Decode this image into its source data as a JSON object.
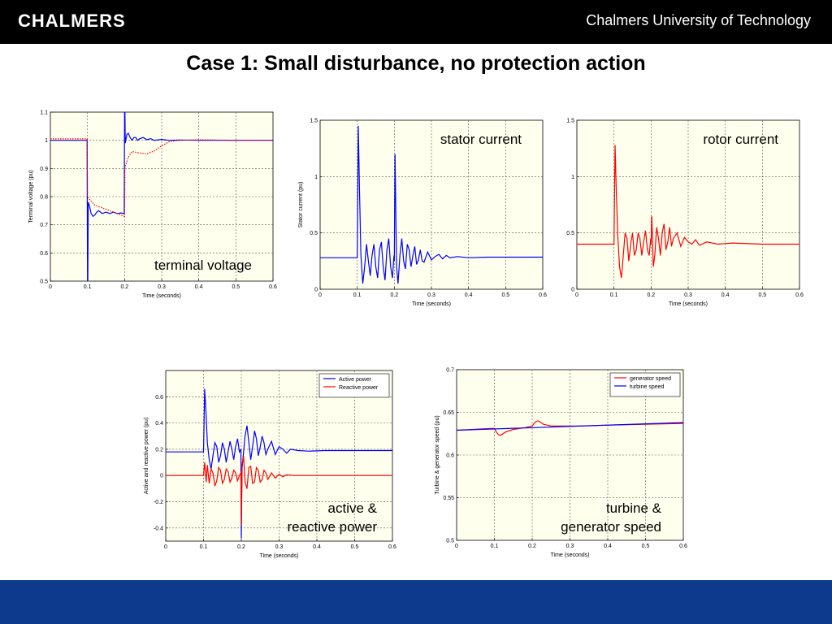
{
  "header": {
    "logo_text": "CHALMERS",
    "university": "Chalmers University of Technology"
  },
  "slide": {
    "title": "Case 1: Small disturbance, no protection action"
  },
  "colors": {
    "header_bg": "#000000",
    "footer_bg": "#0d3a8c",
    "plot_bg": "#ffffee",
    "blue_series": "#0000ff",
    "red_series": "#ff0000"
  },
  "chart_data": [
    {
      "type": "line",
      "annotation": [
        "terminal voltage"
      ],
      "xlabel": "Time (seconds)",
      "ylabel": "Terminal voltage (pu)",
      "xlim": [
        0,
        0.6
      ],
      "ylim": [
        0.5,
        1.1
      ],
      "xticks": [
        0,
        0.1,
        0.2,
        0.3,
        0.4,
        0.5,
        0.6
      ],
      "xtick_labels": [
        "0",
        "0.1",
        "0.2",
        "0.3",
        "0.4",
        "0.5",
        "0.6"
      ],
      "yticks": [
        0.5,
        0.6,
        0.7,
        0.8,
        0.9,
        1,
        1.1
      ],
      "ytick_labels": [
        "0.5",
        "0.6",
        "0.7",
        "0.8",
        "0.9",
        "1",
        "1.1"
      ],
      "grid": true,
      "series": [
        {
          "color": "#0000ff",
          "style": "solid",
          "x": [
            0,
            0.099,
            0.1,
            0.101,
            0.102,
            0.105,
            0.11,
            0.115,
            0.12,
            0.125,
            0.13,
            0.14,
            0.15,
            0.16,
            0.17,
            0.18,
            0.19,
            0.199,
            0.2,
            0.201,
            0.202,
            0.206,
            0.21,
            0.215,
            0.22,
            0.225,
            0.23,
            0.235,
            0.24,
            0.25,
            0.26,
            0.27,
            0.28,
            0.3,
            0.32,
            0.35,
            0.4,
            0.5,
            0.6
          ],
          "y": [
            1.0,
            1.0,
            0.5,
            0.5,
            0.78,
            0.77,
            0.74,
            0.73,
            0.735,
            0.745,
            0.75,
            0.74,
            0.745,
            0.74,
            0.745,
            0.74,
            0.742,
            0.74,
            1.1,
            1.1,
            0.99,
            1.02,
            1.025,
            1.01,
            1.0,
            1.01,
            1.01,
            1.0,
            1.005,
            1.01,
            1.002,
            1.006,
            1.0,
            1.003,
            1.0,
            1.001,
            1.0,
            1.0,
            1.0
          ]
        },
        {
          "color": "#ff0000",
          "style": "dotted",
          "x": [
            0,
            0.099,
            0.1,
            0.105,
            0.12,
            0.14,
            0.16,
            0.18,
            0.2,
            0.201,
            0.21,
            0.22,
            0.24,
            0.26,
            0.28,
            0.3,
            0.32,
            0.35,
            0.4,
            0.5,
            0.6
          ],
          "y": [
            1.005,
            1.005,
            0.8,
            0.79,
            0.77,
            0.76,
            0.75,
            0.74,
            0.73,
            0.905,
            0.94,
            0.96,
            0.955,
            0.952,
            0.962,
            0.98,
            0.995,
            1.0,
            1.002,
            1.0,
            1.0
          ]
        }
      ]
    },
    {
      "type": "line",
      "annotation": [
        "stator current"
      ],
      "xlabel": "Time (seconds)",
      "ylabel": "Stator current (pu)",
      "xlim": [
        0,
        0.6
      ],
      "ylim": [
        0,
        1.5
      ],
      "xticks": [
        0,
        0.1,
        0.2,
        0.3,
        0.4,
        0.5,
        0.6
      ],
      "xtick_labels": [
        "0",
        "0.1",
        "0.2",
        "0.3",
        "0.4",
        "0.5",
        "0.6"
      ],
      "yticks": [
        0,
        0.5,
        1,
        1.5
      ],
      "ytick_labels": [
        "0",
        "0.5",
        "1",
        "1.5"
      ],
      "grid": true,
      "series": [
        {
          "color": "#0000ff",
          "style": "solid",
          "x": [
            0,
            0.099,
            0.1,
            0.103,
            0.106,
            0.11,
            0.115,
            0.12,
            0.125,
            0.13,
            0.135,
            0.14,
            0.145,
            0.15,
            0.155,
            0.16,
            0.165,
            0.17,
            0.175,
            0.18,
            0.185,
            0.19,
            0.195,
            0.199,
            0.2,
            0.202,
            0.206,
            0.21,
            0.215,
            0.22,
            0.225,
            0.23,
            0.235,
            0.24,
            0.245,
            0.25,
            0.255,
            0.26,
            0.265,
            0.27,
            0.275,
            0.28,
            0.29,
            0.3,
            0.31,
            0.32,
            0.33,
            0.34,
            0.35,
            0.37,
            0.4,
            0.45,
            0.5,
            0.6
          ],
          "y": [
            0.28,
            0.28,
            0.28,
            1.45,
            0.9,
            0.3,
            0.05,
            0.2,
            0.4,
            0.25,
            0.12,
            0.3,
            0.4,
            0.2,
            0.1,
            0.35,
            0.42,
            0.2,
            0.08,
            0.35,
            0.45,
            0.2,
            0.1,
            0.3,
            0.25,
            1.2,
            0.2,
            0.05,
            0.3,
            0.45,
            0.25,
            0.18,
            0.4,
            0.35,
            0.2,
            0.3,
            0.38,
            0.22,
            0.26,
            0.35,
            0.25,
            0.24,
            0.33,
            0.26,
            0.29,
            0.31,
            0.27,
            0.3,
            0.28,
            0.29,
            0.28,
            0.285,
            0.285,
            0.285
          ]
        }
      ]
    },
    {
      "type": "line",
      "annotation": [
        "rotor current"
      ],
      "xlabel": "Time (seconds)",
      "ylabel": "",
      "xlim": [
        0,
        0.6
      ],
      "ylim": [
        0,
        1.5
      ],
      "xticks": [
        0,
        0.1,
        0.2,
        0.3,
        0.4,
        0.5,
        0.6
      ],
      "xtick_labels": [
        "0",
        "0.1",
        "0.2",
        "0.3",
        "0.4",
        "0.5",
        "0.6"
      ],
      "yticks": [
        0,
        0.5,
        1,
        1.5
      ],
      "ytick_labels": [
        "0",
        "0.5",
        "1",
        "1.5"
      ],
      "grid": true,
      "series": [
        {
          "color": "#ff0000",
          "style": "solid",
          "x": [
            0,
            0.099,
            0.1,
            0.103,
            0.106,
            0.11,
            0.115,
            0.12,
            0.125,
            0.13,
            0.135,
            0.14,
            0.145,
            0.15,
            0.155,
            0.16,
            0.165,
            0.17,
            0.175,
            0.18,
            0.185,
            0.19,
            0.195,
            0.199,
            0.2,
            0.202,
            0.206,
            0.21,
            0.215,
            0.22,
            0.225,
            0.23,
            0.235,
            0.24,
            0.245,
            0.25,
            0.255,
            0.26,
            0.27,
            0.28,
            0.29,
            0.3,
            0.31,
            0.32,
            0.33,
            0.35,
            0.38,
            0.42,
            0.5,
            0.6
          ],
          "y": [
            0.4,
            0.4,
            0.4,
            1.28,
            0.9,
            0.5,
            0.2,
            0.1,
            0.3,
            0.5,
            0.45,
            0.25,
            0.4,
            0.5,
            0.3,
            0.35,
            0.5,
            0.45,
            0.3,
            0.42,
            0.52,
            0.35,
            0.3,
            0.45,
            0.4,
            0.65,
            0.2,
            0.3,
            0.55,
            0.45,
            0.3,
            0.5,
            0.58,
            0.35,
            0.42,
            0.55,
            0.38,
            0.45,
            0.5,
            0.38,
            0.46,
            0.42,
            0.4,
            0.44,
            0.39,
            0.42,
            0.4,
            0.41,
            0.4,
            0.4
          ]
        }
      ]
    },
    {
      "type": "line",
      "annotation": [
        "active &",
        "reactive power"
      ],
      "xlabel": "Time (seconds)",
      "ylabel": "Active and reactive power (pu)",
      "xlim": [
        0,
        0.6
      ],
      "ylim": [
        -0.5,
        0.8
      ],
      "xticks": [
        0,
        0.1,
        0.2,
        0.3,
        0.4,
        0.5,
        0.6
      ],
      "xtick_labels": [
        "0",
        "0.1",
        "0.2",
        "0.3",
        "0.4",
        "0.5",
        "0.6"
      ],
      "yticks": [
        -0.4,
        -0.2,
        0,
        0.2,
        0.4,
        0.6
      ],
      "ytick_labels": [
        "-0.4",
        "-0.2",
        "0",
        "0.2",
        "0.4",
        "0.6"
      ],
      "grid": true,
      "legend_position": "top-right",
      "series": [
        {
          "name": "Active power",
          "color": "#0000ff",
          "style": "solid",
          "x": [
            0,
            0.099,
            0.1,
            0.103,
            0.107,
            0.11,
            0.115,
            0.12,
            0.125,
            0.13,
            0.135,
            0.14,
            0.145,
            0.15,
            0.155,
            0.16,
            0.165,
            0.17,
            0.175,
            0.18,
            0.185,
            0.19,
            0.195,
            0.199,
            0.2,
            0.202,
            0.206,
            0.21,
            0.215,
            0.22,
            0.225,
            0.23,
            0.235,
            0.24,
            0.245,
            0.25,
            0.255,
            0.26,
            0.265,
            0.27,
            0.28,
            0.29,
            0.3,
            0.31,
            0.32,
            0.33,
            0.35,
            0.38,
            0.42,
            0.5,
            0.6
          ],
          "y": [
            0.18,
            0.18,
            0.18,
            0.66,
            0.45,
            0.25,
            0.12,
            0.05,
            0.15,
            0.25,
            0.22,
            0.1,
            0.15,
            0.25,
            0.2,
            0.1,
            0.18,
            0.26,
            0.2,
            0.12,
            0.22,
            0.28,
            0.18,
            0.2,
            -0.48,
            0.05,
            0.18,
            0.3,
            0.38,
            0.25,
            0.12,
            0.22,
            0.34,
            0.28,
            0.15,
            0.22,
            0.3,
            0.25,
            0.16,
            0.2,
            0.26,
            0.16,
            0.22,
            0.2,
            0.17,
            0.2,
            0.19,
            0.185,
            0.19,
            0.19,
            0.19
          ]
        },
        {
          "name": "Reactive power",
          "color": "#ff0000",
          "style": "solid",
          "x": [
            0,
            0.099,
            0.1,
            0.103,
            0.107,
            0.11,
            0.115,
            0.12,
            0.125,
            0.13,
            0.135,
            0.14,
            0.145,
            0.15,
            0.155,
            0.16,
            0.165,
            0.17,
            0.175,
            0.18,
            0.185,
            0.19,
            0.195,
            0.199,
            0.2,
            0.202,
            0.206,
            0.21,
            0.215,
            0.22,
            0.225,
            0.23,
            0.235,
            0.24,
            0.245,
            0.25,
            0.255,
            0.26,
            0.265,
            0.27,
            0.28,
            0.29,
            0.3,
            0.31,
            0.32,
            0.34,
            0.37,
            0.4,
            0.45,
            0.5,
            0.6
          ],
          "y": [
            0,
            0,
            0,
            0.1,
            -0.05,
            0.08,
            -0.06,
            0.05,
            0.02,
            -0.08,
            -0.04,
            0.06,
            0.04,
            -0.06,
            -0.03,
            0.05,
            0.03,
            -0.05,
            -0.02,
            0.04,
            0.02,
            -0.04,
            0.0,
            0.02,
            -0.38,
            0.08,
            0.15,
            -0.05,
            -0.1,
            0.06,
            0.07,
            -0.06,
            -0.05,
            0.06,
            0.04,
            -0.05,
            -0.03,
            0.04,
            0.02,
            -0.03,
            0.02,
            -0.02,
            0.01,
            -0.01,
            0.005,
            0,
            0,
            0,
            0,
            0,
            0
          ]
        }
      ]
    },
    {
      "type": "line",
      "annotation": [
        "turbine &",
        "generator speed"
      ],
      "xlabel": "Time (seconds)",
      "ylabel": "Turbine & generator speed (pu)",
      "xlim": [
        0,
        0.6
      ],
      "ylim": [
        0.5,
        0.7
      ],
      "xticks": [
        0,
        0.1,
        0.2,
        0.3,
        0.4,
        0.5,
        0.6
      ],
      "xtick_labels": [
        "0",
        "0.1",
        "0.2",
        "0.3",
        "0.4",
        "0.5",
        "0.6"
      ],
      "yticks": [
        0.5,
        0.55,
        0.6,
        0.65,
        0.7
      ],
      "ytick_labels": [
        "0.5",
        "0.55",
        "0.6",
        "0.65",
        "0.7"
      ],
      "grid": true,
      "legend_position": "top-right",
      "series": [
        {
          "name": "generator speed",
          "color": "#ff0000",
          "style": "solid",
          "x": [
            0,
            0.09,
            0.1,
            0.105,
            0.11,
            0.115,
            0.12,
            0.13,
            0.15,
            0.18,
            0.2,
            0.205,
            0.21,
            0.215,
            0.22,
            0.23,
            0.25,
            0.28,
            0.32,
            0.4,
            0.5,
            0.6
          ],
          "y": [
            0.629,
            0.631,
            0.631,
            0.627,
            0.624,
            0.623,
            0.624,
            0.627,
            0.63,
            0.632,
            0.634,
            0.637,
            0.639,
            0.64,
            0.639,
            0.636,
            0.634,
            0.634,
            0.634,
            0.635,
            0.636,
            0.637
          ]
        },
        {
          "name": "turbine speed",
          "color": "#0000ff",
          "style": "solid",
          "x": [
            0,
            0.6
          ],
          "y": [
            0.629,
            0.638
          ]
        }
      ]
    }
  ]
}
